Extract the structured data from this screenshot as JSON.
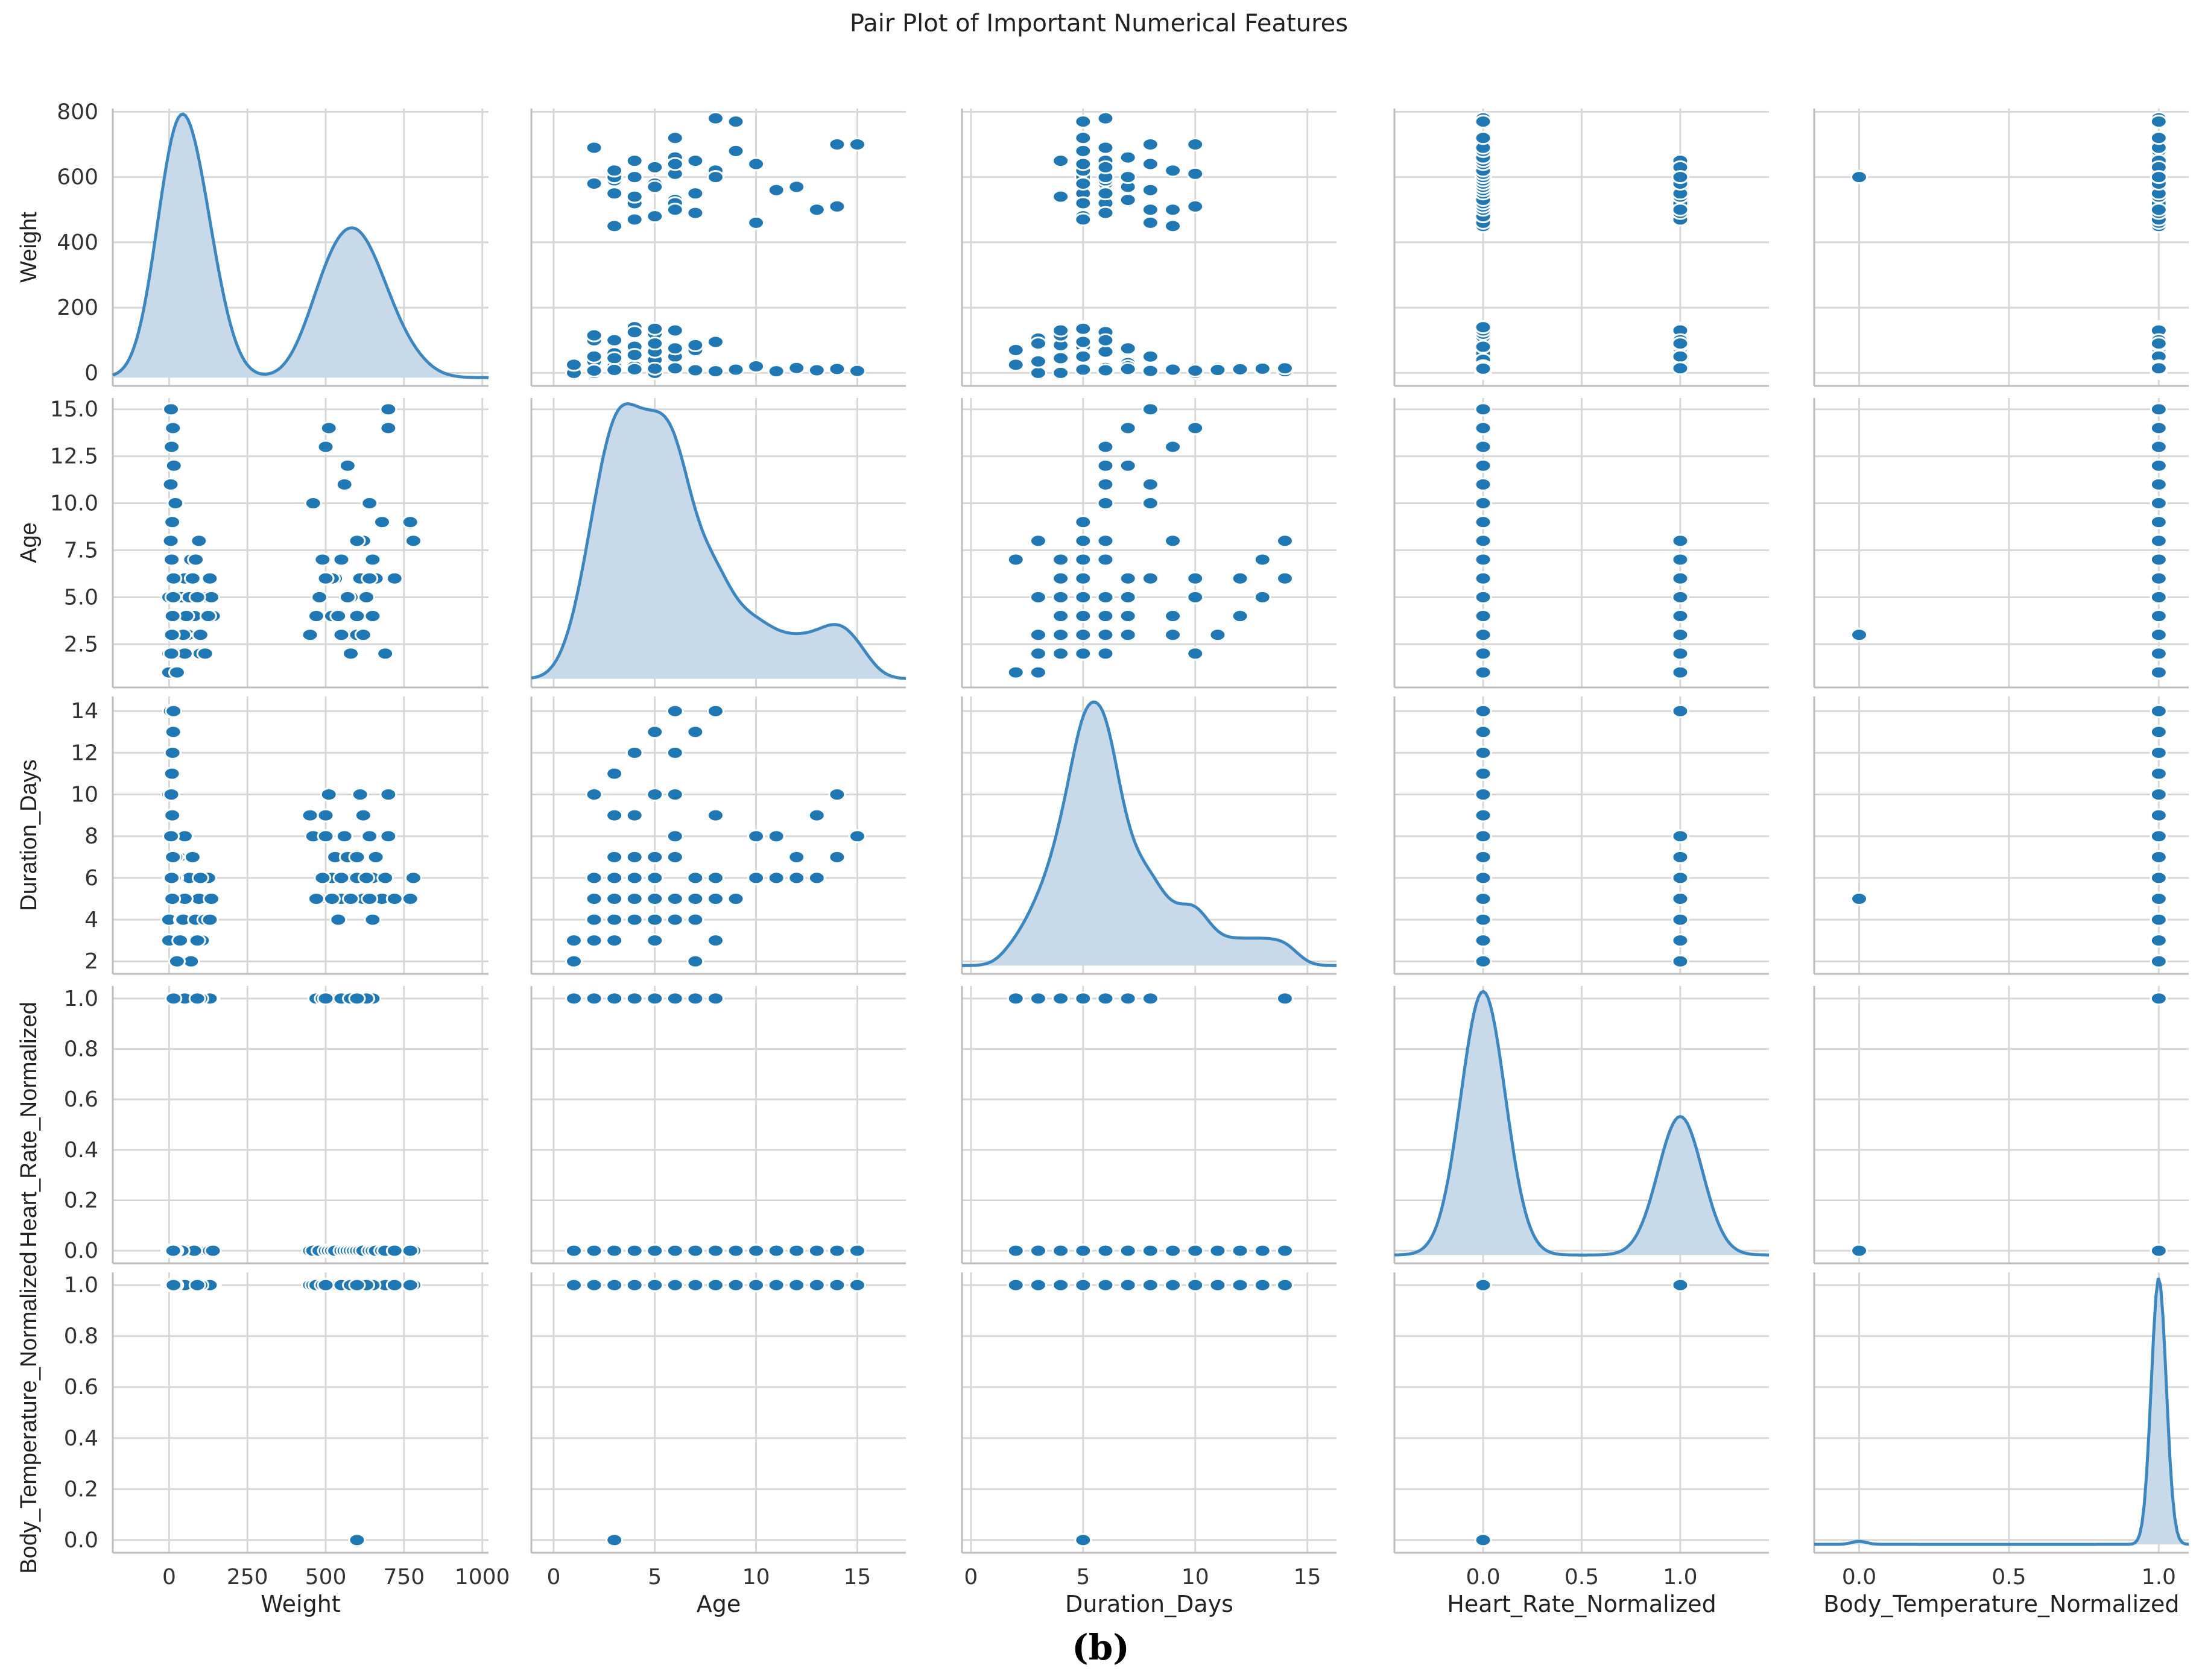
{
  "title": "Pair Plot of Important Numerical Features",
  "caption": "(b)",
  "colors": {
    "marker": "#1f77b4",
    "kde_line": "#3d87c0",
    "kde_fill": "#c8dae9",
    "grid": "#d8d8d8"
  },
  "chart_data": {
    "type": "scatter",
    "variables": [
      "Weight",
      "Age",
      "Duration_Days",
      "Heart_Rate_Normalized",
      "Body_Temperature_Normalized"
    ],
    "axes": {
      "Weight": {
        "range": [
          -180,
          1020
        ],
        "ticks": [
          0,
          250,
          500,
          750,
          1000
        ],
        "tick_labels": [
          "0",
          "250",
          "500",
          "750",
          "1000"
        ]
      },
      "Age": {
        "range": [
          -1.1,
          17.4
        ],
        "ticks": [
          0,
          5,
          10,
          15
        ],
        "tick_labels": [
          "0",
          "5",
          "10",
          "15"
        ]
      },
      "Duration_Days": {
        "range": [
          -0.4,
          16.3
        ],
        "ticks": [
          0,
          5,
          10,
          15
        ],
        "tick_labels": [
          "0",
          "5",
          "10",
          "15"
        ]
      },
      "Heart_Rate_Normalized": {
        "range": [
          -0.45,
          1.45
        ],
        "ticks": [
          0,
          0.5,
          1
        ],
        "tick_labels": [
          "0.0",
          "0.5",
          "1.0"
        ]
      },
      "Body_Temperature_Normalized": {
        "range": [
          -0.15,
          1.1
        ],
        "ticks": [
          0,
          0.5,
          1
        ],
        "tick_labels": [
          "0.0",
          "0.5",
          "1.0"
        ]
      }
    },
    "row_axes": {
      "Weight": {
        "range": [
          -40,
          810
        ],
        "ticks": [
          0,
          200,
          400,
          600,
          800
        ],
        "tick_labels": [
          "0",
          "200",
          "400",
          "600",
          "800"
        ]
      },
      "Age": {
        "range": [
          0.2,
          15.6
        ],
        "ticks": [
          2.5,
          5,
          7.5,
          10,
          12.5,
          15
        ],
        "tick_labels": [
          "2.5",
          "5.0",
          "7.5",
          "10.0",
          "12.5",
          "15.0"
        ]
      },
      "Duration_Days": {
        "range": [
          1.4,
          14.7
        ],
        "ticks": [
          2,
          4,
          6,
          8,
          10,
          12,
          14
        ],
        "tick_labels": [
          "2",
          "4",
          "6",
          "8",
          "10",
          "12",
          "14"
        ]
      },
      "Heart_Rate_Normalized": {
        "range": [
          -0.05,
          1.05
        ],
        "ticks": [
          0,
          0.2,
          0.4,
          0.6,
          0.8,
          1
        ],
        "tick_labels": [
          "0.0",
          "0.2",
          "0.4",
          "0.6",
          "0.8",
          "1.0"
        ]
      },
      "Body_Temperature_Normalized": {
        "range": [
          -0.05,
          1.05
        ],
        "ticks": [
          0,
          0.2,
          0.4,
          0.6,
          0.8,
          1
        ],
        "tick_labels": [
          "0.0",
          "0.2",
          "0.4",
          "0.6",
          "0.8",
          "1.0"
        ]
      }
    },
    "records": [
      [
        0,
        1,
        3,
        0,
        1
      ],
      [
        0,
        2,
        4,
        0,
        1
      ],
      [
        10,
        3,
        5,
        0,
        1
      ],
      [
        20,
        4,
        6,
        0,
        1
      ],
      [
        30,
        5,
        7,
        0,
        1
      ],
      [
        50,
        6,
        8,
        0,
        1
      ],
      [
        70,
        7,
        2,
        0,
        1
      ],
      [
        90,
        8,
        3,
        0,
        1
      ],
      [
        100,
        2,
        5,
        0,
        1
      ],
      [
        110,
        3,
        4,
        0,
        1
      ],
      [
        120,
        5,
        6,
        0,
        1
      ],
      [
        130,
        6,
        4,
        0,
        1
      ],
      [
        140,
        4,
        5,
        0,
        1
      ],
      [
        60,
        3,
        6,
        0,
        1
      ],
      [
        80,
        4,
        5,
        0,
        1
      ],
      [
        40,
        5,
        4,
        0,
        1
      ],
      [
        5,
        8,
        14,
        0,
        1
      ],
      [
        8,
        7,
        13,
        0,
        1
      ],
      [
        12,
        6,
        12,
        0,
        1
      ],
      [
        15,
        3,
        11,
        0,
        1
      ],
      [
        0,
        5,
        10,
        0,
        1
      ],
      [
        10,
        4,
        9,
        0,
        1
      ],
      [
        20,
        3,
        7,
        0,
        1
      ],
      [
        25,
        1,
        2,
        1,
        1
      ],
      [
        35,
        2,
        3,
        1,
        1
      ],
      [
        45,
        3,
        4,
        1,
        1
      ],
      [
        55,
        4,
        5,
        1,
        1
      ],
      [
        65,
        5,
        6,
        1,
        1
      ],
      [
        75,
        6,
        7,
        1,
        1
      ],
      [
        85,
        7,
        4,
        1,
        1
      ],
      [
        95,
        8,
        5,
        1,
        1
      ],
      [
        105,
        3,
        3,
        1,
        1
      ],
      [
        115,
        2,
        4,
        1,
        1
      ],
      [
        125,
        4,
        6,
        1,
        1
      ],
      [
        135,
        5,
        5,
        1,
        1
      ],
      [
        130,
        6,
        4,
        1,
        1
      ],
      [
        100,
        3,
        6,
        1,
        1
      ],
      [
        50,
        2,
        5,
        1,
        1
      ],
      [
        90,
        5,
        3,
        1,
        1
      ],
      [
        450,
        3,
        9,
        0,
        1
      ],
      [
        460,
        10,
        8,
        0,
        1
      ],
      [
        480,
        5,
        5,
        0,
        1
      ],
      [
        500,
        13,
        9,
        0,
        1
      ],
      [
        510,
        14,
        10,
        0,
        1
      ],
      [
        520,
        4,
        6,
        0,
        1
      ],
      [
        530,
        6,
        7,
        0,
        1
      ],
      [
        550,
        7,
        5,
        0,
        1
      ],
      [
        560,
        11,
        8,
        0,
        1
      ],
      [
        570,
        12,
        7,
        0,
        1
      ],
      [
        580,
        5,
        6,
        0,
        1
      ],
      [
        590,
        3,
        6,
        0,
        1
      ],
      [
        600,
        3,
        5,
        0,
        0
      ],
      [
        610,
        6,
        10,
        0,
        1
      ],
      [
        620,
        8,
        9,
        0,
        1
      ],
      [
        640,
        10,
        8,
        0,
        1
      ],
      [
        650,
        4,
        6,
        0,
        1
      ],
      [
        660,
        6,
        7,
        0,
        1
      ],
      [
        680,
        9,
        5,
        0,
        1
      ],
      [
        700,
        14,
        10,
        0,
        1
      ],
      [
        700,
        15,
        8,
        0,
        1
      ],
      [
        780,
        8,
        6,
        0,
        1
      ],
      [
        770,
        9,
        5,
        0,
        1
      ],
      [
        690,
        2,
        6,
        0,
        1
      ],
      [
        720,
        6,
        5,
        0,
        1
      ],
      [
        470,
        4,
        5,
        1,
        1
      ],
      [
        490,
        7,
        6,
        1,
        1
      ],
      [
        520,
        6,
        5,
        1,
        1
      ],
      [
        540,
        4,
        4,
        1,
        1
      ],
      [
        570,
        5,
        7,
        1,
        1
      ],
      [
        600,
        8,
        6,
        1,
        1
      ],
      [
        620,
        3,
        5,
        1,
        1
      ],
      [
        640,
        6,
        5,
        1,
        1
      ],
      [
        650,
        7,
        4,
        1,
        1
      ],
      [
        500,
        6,
        8,
        1,
        1
      ],
      [
        550,
        3,
        6,
        1,
        1
      ],
      [
        580,
        2,
        5,
        1,
        1
      ],
      [
        630,
        5,
        6,
        1,
        1
      ],
      [
        600,
        4,
        7,
        1,
        1
      ],
      [
        10,
        9,
        5,
        0,
        1
      ],
      [
        20,
        10,
        6,
        0,
        1
      ],
      [
        5,
        11,
        6,
        0,
        1
      ],
      [
        15,
        12,
        6,
        0,
        1
      ],
      [
        8,
        13,
        6,
        0,
        1
      ],
      [
        12,
        14,
        7,
        0,
        1
      ],
      [
        6,
        15,
        8,
        0,
        1
      ],
      [
        7,
        2,
        10,
        0,
        1
      ],
      [
        9,
        3,
        11,
        0,
        1
      ],
      [
        11,
        4,
        12,
        0,
        1
      ],
      [
        13,
        5,
        13,
        0,
        1
      ],
      [
        14,
        6,
        14,
        1,
        1
      ]
    ]
  }
}
